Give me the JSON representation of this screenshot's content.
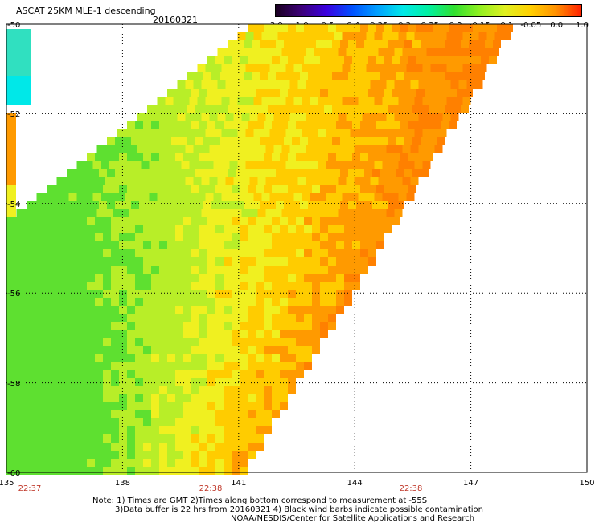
{
  "header": {
    "title": "ASCAT 25KM MLE-1 descending",
    "date": "20160321"
  },
  "colorbar": {
    "labels": [
      "-3.0",
      "-1.0",
      "-0.5",
      "-0.4",
      "-0.35",
      "-0.3",
      "-0.25",
      "-0.2",
      "-0.15",
      "-0.1",
      "-0.05",
      "0.0",
      "1.0"
    ],
    "colors": [
      "#1a0020",
      "#3c0078",
      "#3a00e0",
      "#0050ff",
      "#00a0ff",
      "#00e8e8",
      "#00f0a0",
      "#30e030",
      "#90f020",
      "#e0f020",
      "#ffd000",
      "#ff9000",
      "#ff2000"
    ]
  },
  "axes": {
    "lat_labels": [
      "-50",
      "-52",
      "-54",
      "-56",
      "-58",
      "-60"
    ],
    "lon_labels": [
      "135",
      "138",
      "141",
      "144",
      "147",
      "150"
    ]
  },
  "time_labels": [
    "22:37",
    "22:38",
    "22:38"
  ],
  "notes": [
    "Note: 1) Times are GMT 2)Times along bottom correspond to measurement at -55S",
    "3)Data buffer is 22 hrs from 20160321 4) Black wind barbs indicate possible contamination",
    "NOAA/NESDIS/Center for Satellite Applications and Research"
  ],
  "map_data": {
    "lon_range": [
      135,
      150
    ],
    "lat_range": [
      -60,
      -50
    ],
    "swath_edge_lon_at_top": 148,
    "swath_edge_lon_at_bottom": 141,
    "gradient_note": "values increase west to east; green ~ -0.2 to -0.15, yellow ~ -0.1, orange ~ 0.0 near swath edge"
  }
}
